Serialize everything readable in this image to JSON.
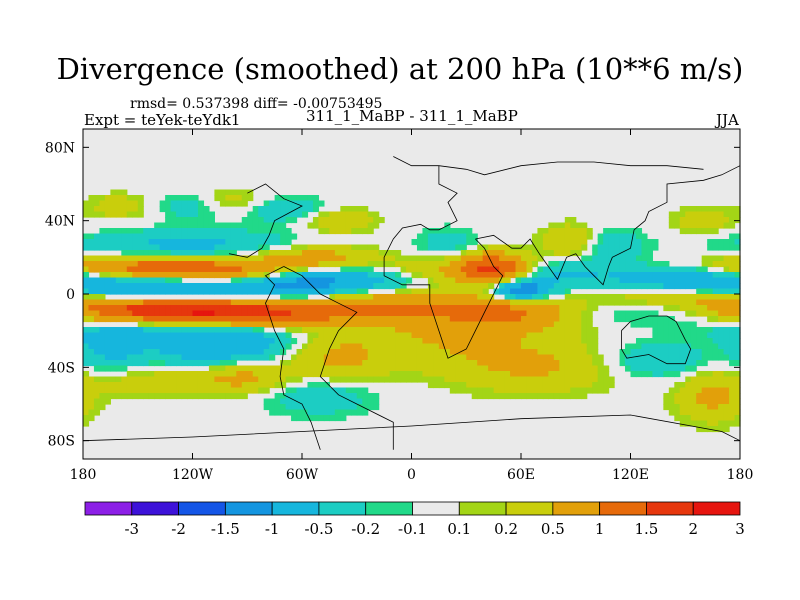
{
  "chart_data": {
    "type": "heatmap",
    "title": "Divergence (smoothed) at 200 hPa (10**6 m/s)",
    "stats_text": "rmsd= 0.537398 diff= -0.00753495",
    "left_label": "Expt = teYek-teYdk1",
    "center_label": "311_1_MaBP - 311_1_MaBP",
    "right_label": "JJA",
    "xlim": [
      -180,
      180
    ],
    "ylim": [
      -90,
      90
    ],
    "x_ticks": [
      {
        "value": -180,
        "label": "180"
      },
      {
        "value": -120,
        "label": "120W"
      },
      {
        "value": -60,
        "label": "60W"
      },
      {
        "value": 0,
        "label": "0"
      },
      {
        "value": 60,
        "label": "60E"
      },
      {
        "value": 120,
        "label": "120E"
      },
      {
        "value": 180,
        "label": "180"
      }
    ],
    "y_ticks": [
      {
        "value": 80,
        "label": "80N"
      },
      {
        "value": 40,
        "label": "40N"
      },
      {
        "value": 0,
        "label": "0"
      },
      {
        "value": -40,
        "label": "40S"
      },
      {
        "value": -80,
        "label": "80S"
      }
    ],
    "levels": [
      "-3",
      "-2",
      "-1.5",
      "-1",
      "-0.5",
      "-0.2",
      "-0.1",
      "0.1",
      "0.2",
      "0.5",
      "1",
      "1.5",
      "2",
      "3"
    ],
    "colors": [
      "#8c1fe6",
      "#3d12d9",
      "#1455e6",
      "#1495e0",
      "#16b6dd",
      "#1ccdc3",
      "#21d989",
      "#eaeaea",
      "#a3d516",
      "#c9ce0c",
      "#e2a00a",
      "#e66a0a",
      "#e6370d",
      "#e6150f"
    ],
    "missing_color": "#eaeaea",
    "features": [
      {
        "lon": -140,
        "lat": 4,
        "slon": 60,
        "slat": 5,
        "amp": -1.35
      },
      {
        "lon": -150,
        "lat": 14,
        "slon": 40,
        "slat": 5,
        "amp": 1.15
      },
      {
        "lon": -110,
        "lat": 12,
        "slon": 30,
        "slat": 5,
        "amp": 0.9
      },
      {
        "lon": -140,
        "lat": -8,
        "slon": 55,
        "slat": 5,
        "amp": 1.45
      },
      {
        "lon": -100,
        "lat": -12,
        "slon": 45,
        "slat": 5,
        "amp": 1.1
      },
      {
        "lon": -130,
        "lat": -20,
        "slon": 40,
        "slat": 5,
        "amp": -0.7
      },
      {
        "lon": -120,
        "lat": 26,
        "slon": 45,
        "slat": 6,
        "amp": -0.65
      },
      {
        "lon": -165,
        "lat": -30,
        "slon": 14,
        "slat": 8,
        "amp": -0.6
      },
      {
        "lon": -118,
        "lat": -31,
        "slon": 20,
        "slat": 6,
        "amp": -0.6
      },
      {
        "lon": -90,
        "lat": -28,
        "slon": 18,
        "slat": 6,
        "amp": -0.55
      },
      {
        "lon": -140,
        "lat": -48,
        "slon": 25,
        "slat": 6,
        "amp": 0.35
      },
      {
        "lon": -90,
        "lat": -46,
        "slon": 18,
        "slat": 6,
        "amp": 0.6
      },
      {
        "lon": -50,
        "lat": -55,
        "slon": 22,
        "slat": 8,
        "amp": -0.45
      },
      {
        "lon": -40,
        "lat": -36,
        "slon": 18,
        "slat": 10,
        "amp": 0.55
      },
      {
        "lon": -60,
        "lat": 4,
        "slon": 15,
        "slat": 6,
        "amp": -0.55
      },
      {
        "lon": -55,
        "lat": 20,
        "slon": 25,
        "slat": 5,
        "amp": 0.8
      },
      {
        "lon": -30,
        "lat": 8,
        "slon": 30,
        "slat": 5,
        "amp": -0.7
      },
      {
        "lon": -20,
        "lat": -6,
        "slon": 35,
        "slat": 6,
        "amp": 0.7
      },
      {
        "lon": -120,
        "lat": 48,
        "slon": 14,
        "slat": 5,
        "amp": -0.4
      },
      {
        "lon": -160,
        "lat": 48,
        "slon": 12,
        "slat": 5,
        "amp": 0.35
      },
      {
        "lon": -100,
        "lat": 50,
        "slon": 15,
        "slat": 5,
        "amp": 0.4
      },
      {
        "lon": -70,
        "lat": 46,
        "slon": 18,
        "slat": 5,
        "amp": -0.45
      },
      {
        "lon": -40,
        "lat": 40,
        "slon": 14,
        "slat": 5,
        "amp": 0.5
      },
      {
        "lon": 45,
        "lat": 14,
        "slon": 14,
        "slat": 6,
        "amp": 1.6
      },
      {
        "lon": 60,
        "lat": 2,
        "slon": 12,
        "slat": 4,
        "amp": -1.6
      },
      {
        "lon": 55,
        "lat": -10,
        "slon": 28,
        "slat": 7,
        "amp": 0.9
      },
      {
        "lon": 20,
        "lat": -22,
        "slon": 35,
        "slat": 14,
        "amp": 0.5
      },
      {
        "lon": 70,
        "lat": -40,
        "slon": 30,
        "slat": 10,
        "amp": 0.5
      },
      {
        "lon": 90,
        "lat": 28,
        "slon": 12,
        "slat": 7,
        "amp": 0.7
      },
      {
        "lon": 105,
        "lat": 26,
        "slon": 14,
        "slat": 7,
        "amp": -0.6
      },
      {
        "lon": 150,
        "lat": 10,
        "slon": 30,
        "slat": 5,
        "amp": -0.7
      },
      {
        "lon": 150,
        "lat": 0,
        "slon": 30,
        "slat": 4,
        "amp": 0.7
      },
      {
        "lon": 140,
        "lat": -10,
        "slon": 40,
        "slat": 5,
        "amp": -0.55
      },
      {
        "lon": 135,
        "lat": -36,
        "slon": 20,
        "slat": 7,
        "amp": -0.5
      },
      {
        "lon": 165,
        "lat": -56,
        "slon": 14,
        "slat": 10,
        "amp": 0.6
      },
      {
        "lon": 160,
        "lat": 40,
        "slon": 12,
        "slat": 5,
        "amp": 0.4
      },
      {
        "lon": 20,
        "lat": 28,
        "slon": 12,
        "slat": 6,
        "amp": -0.35
      },
      {
        "lon": 10,
        "lat": 12,
        "slon": 20,
        "slat": 5,
        "amp": 0.5
      },
      {
        "lon": 80,
        "lat": 12,
        "slon": 18,
        "slat": 5,
        "amp": -0.5
      }
    ]
  }
}
